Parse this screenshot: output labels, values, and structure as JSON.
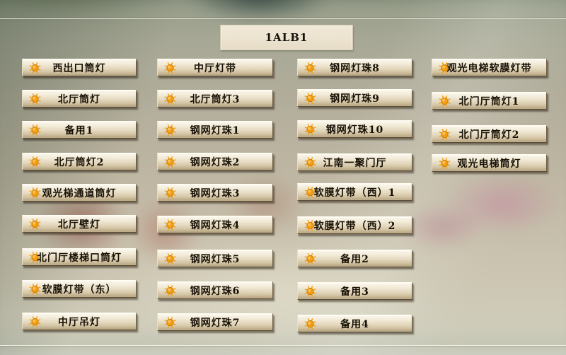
{
  "window": {
    "title": "1ALB1"
  },
  "icons": {
    "button_icon": "sun-icon"
  },
  "colors": {
    "sun_orange": "#F59E11",
    "sun_outline": "#C87A00",
    "sun_highlight": "#FFD27A",
    "button_face_top": "#FBF7EC",
    "button_face_bottom": "#B9A783",
    "button_text": "#171005",
    "title_box_bg": "#EBE2CF",
    "panel_line": "#F6F4E4"
  },
  "panel": {
    "columns": [
      {
        "buttons": [
          "西出口筒灯",
          "北厅筒灯",
          "备用1",
          "北厅筒灯2",
          "观光梯通道筒灯",
          "北厅壁灯",
          "北门厅楼梯口筒灯",
          "软膜灯带（东）",
          "中厅吊灯"
        ]
      },
      {
        "buttons": [
          "中厅灯带",
          "北厅筒灯3",
          "钢网灯珠1",
          "钢网灯珠2",
          "钢网灯珠3",
          "钢网灯珠4",
          "钢网灯珠5",
          "钢网灯珠6",
          "钢网灯珠7"
        ]
      },
      {
        "buttons": [
          "钢网灯珠8",
          "钢网灯珠9",
          "钢网灯珠10",
          "江南一聚门厅",
          "软膜灯带（西）1",
          "软膜灯带（西）2",
          "备用2",
          "备用3",
          "备用4"
        ]
      },
      {
        "buttons": [
          "观光电梯软膜灯带",
          "北门厅筒灯1",
          "北门厅筒灯2",
          "观光电梯筒灯"
        ]
      }
    ]
  }
}
